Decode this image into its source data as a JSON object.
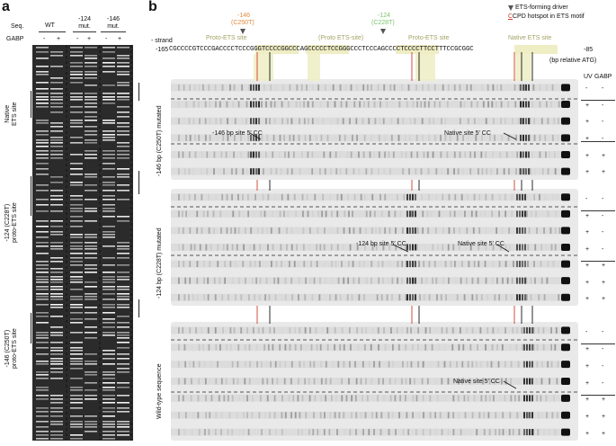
{
  "panel_a": {
    "label": "a",
    "seq_label": "Seq.",
    "gabp_label": "GABP",
    "lanes": [
      {
        "seq": "WT",
        "minus": "-",
        "plus": "+"
      },
      {
        "seq": "-124\nmut.",
        "minus": "-",
        "plus": "+"
      },
      {
        "seq": "-146\nmut.",
        "minus": "-",
        "plus": "+"
      }
    ],
    "side_labels": [
      {
        "text": "Native\nETS site"
      },
      {
        "text": "-124 (C228T)\nproto-ETS site"
      },
      {
        "text": "-146 (C250T)\nproto-ETS site"
      }
    ]
  },
  "panel_b": {
    "label": "b",
    "legend": {
      "driver": "ETS-forming driver",
      "hotspot_prefix": "C",
      "hotspot": " CPD hotspot in ETS motif"
    },
    "mutation_146": {
      "pos": "-146",
      "name": "(C250T)"
    },
    "mutation_124": {
      "pos": "-124",
      "name": "(C228T)"
    },
    "strand": "- strand",
    "site_labels": [
      "Proto-ETS site",
      "(Proto ETS-site)",
      "Proto-ETS site",
      "Native ETS site"
    ],
    "sequence": {
      "start": "-165",
      "seq": "CGCCCCGTCCCGACCCCTCCCGGGTCCCCGGCCCAGCCCCCTCCGGGCCCTCCCAGCCCCTCCCCTTCCTTTCCGCGGC",
      "end": "-85",
      "note": "(bp relative ATG)"
    },
    "uv_header": "UV",
    "gabp_header": "GABP",
    "gels": [
      {
        "side_label": "-146 bp (C250T) mutated",
        "annotations": [
          "-146 bp site 5′ CC",
          "Native site 5′ CC"
        ],
        "uv": [
          "-",
          "+",
          "+",
          "+",
          "+",
          "+"
        ],
        "gabp": [
          "-",
          "-",
          "-",
          "-",
          "+",
          "+"
        ]
      },
      {
        "side_label": "-124 bp (C228T) mutated",
        "annotations": [
          "-124 bp site 5′ CC",
          "Native site 5′ CC"
        ],
        "uv": [
          "-",
          "+",
          "+",
          "+",
          "+",
          "+",
          "+"
        ],
        "gabp": [
          "-",
          "-",
          "-",
          "-",
          "+",
          "+",
          "+"
        ]
      },
      {
        "side_label": "Wild-type sequence",
        "annotations": [
          "Native site 5′ CC"
        ],
        "uv": [
          "-",
          "+",
          "+",
          "+",
          "+",
          "+",
          "+"
        ],
        "gabp": [
          "-",
          "-",
          "-",
          "-",
          "+",
          "+",
          "+"
        ]
      }
    ]
  }
}
